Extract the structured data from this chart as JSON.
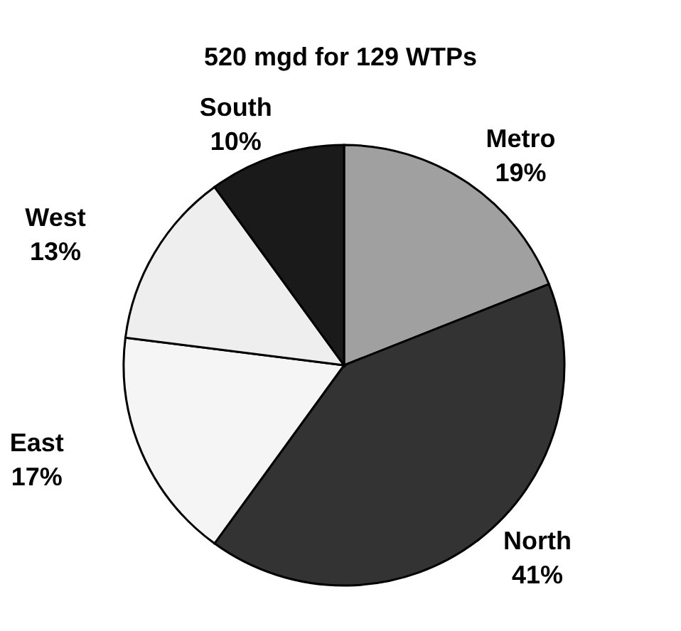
{
  "chart_data": {
    "type": "pie",
    "title": "520 mgd for 129 WTPs",
    "categories": [
      "Metro",
      "North",
      "East",
      "West",
      "South"
    ],
    "values": [
      19,
      41,
      17,
      13,
      10
    ],
    "value_labels": [
      "19%",
      "41%",
      "17%",
      "13%",
      "10%"
    ],
    "colors": [
      "#a0a0a0",
      "#333333",
      "#f5f5f5",
      "#eeeeee",
      "#1a1a1a"
    ],
    "legend": false
  }
}
